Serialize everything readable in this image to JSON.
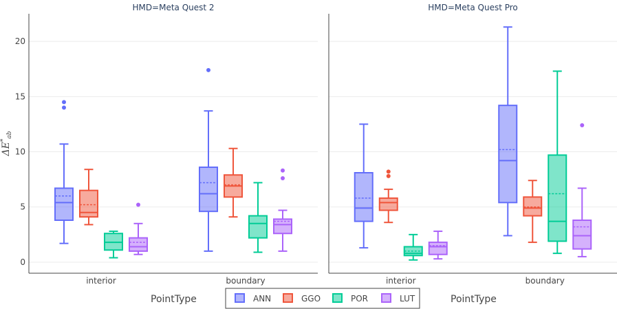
{
  "chart_data": {
    "type": "box",
    "ylabel_parts": {
      "main": "ΔE",
      "sup": "*",
      "sub": "ab"
    },
    "ylim": [
      -1,
      22.5
    ],
    "yticks": [
      0,
      5,
      10,
      15,
      20
    ],
    "categories": [
      "interior",
      "boundary"
    ],
    "xlabel": "PointType",
    "legend": {
      "position": "bottom",
      "entries": [
        "ANN",
        "GGO",
        "POR",
        "LUT"
      ]
    },
    "colors": {
      "ANN": "#636efa",
      "GGO": "#ef553b",
      "POR": "#00cc96",
      "LUT": "#ab63fa"
    },
    "panels": [
      {
        "title": "HMD=Meta Quest 2",
        "boxes": {
          "interior": {
            "ANN": {
              "min": 1.7,
              "q1": 3.8,
              "median": 5.4,
              "q3": 6.7,
              "max": 10.7,
              "mean": 6.0,
              "outliers": [
                14.0,
                14.5
              ]
            },
            "GGO": {
              "min": 3.4,
              "q1": 4.1,
              "median": 4.5,
              "q3": 6.5,
              "max": 8.4,
              "mean": 5.2,
              "outliers": []
            },
            "POR": {
              "min": 0.4,
              "q1": 1.1,
              "median": 1.8,
              "q3": 2.6,
              "max": 2.8,
              "mean": 1.8,
              "outliers": []
            },
            "LUT": {
              "min": 0.7,
              "q1": 1.0,
              "median": 1.4,
              "q3": 2.2,
              "max": 3.5,
              "mean": 1.8,
              "outliers": [
                5.2
              ]
            }
          },
          "boundary": {
            "ANN": {
              "min": 1.0,
              "q1": 4.6,
              "median": 6.2,
              "q3": 8.6,
              "max": 13.7,
              "mean": 7.2,
              "outliers": [
                17.4
              ]
            },
            "GGO": {
              "min": 4.1,
              "q1": 5.9,
              "median": 6.9,
              "q3": 7.9,
              "max": 10.3,
              "mean": 7.0,
              "outliers": []
            },
            "POR": {
              "min": 0.9,
              "q1": 2.2,
              "median": 3.5,
              "q3": 4.2,
              "max": 7.2,
              "mean": 3.5,
              "outliers": []
            },
            "LUT": {
              "min": 1.0,
              "q1": 2.6,
              "median": 3.4,
              "q3": 3.9,
              "max": 4.7,
              "mean": 3.7,
              "outliers": [
                7.6,
                8.3
              ]
            }
          }
        }
      },
      {
        "title": "HMD=Meta Quest Pro",
        "boxes": {
          "interior": {
            "ANN": {
              "min": 1.3,
              "q1": 3.7,
              "median": 4.9,
              "q3": 8.1,
              "max": 12.5,
              "mean": 5.8,
              "outliers": []
            },
            "GGO": {
              "min": 3.6,
              "q1": 4.7,
              "median": 5.4,
              "q3": 5.8,
              "max": 6.6,
              "mean": 5.4,
              "outliers": [
                7.8,
                8.2
              ]
            },
            "POR": {
              "min": 0.2,
              "q1": 0.6,
              "median": 0.8,
              "q3": 1.4,
              "max": 2.5,
              "mean": 1.0,
              "outliers": []
            },
            "LUT": {
              "min": 0.3,
              "q1": 0.7,
              "median": 1.4,
              "q3": 1.8,
              "max": 2.8,
              "mean": 1.5,
              "outliers": []
            }
          },
          "boundary": {
            "ANN": {
              "min": 2.4,
              "q1": 5.4,
              "median": 9.2,
              "q3": 14.2,
              "max": 21.3,
              "mean": 10.2,
              "outliers": []
            },
            "GGO": {
              "min": 1.8,
              "q1": 4.2,
              "median": 4.9,
              "q3": 5.9,
              "max": 7.4,
              "mean": 5.0,
              "outliers": []
            },
            "POR": {
              "min": 0.8,
              "q1": 1.9,
              "median": 3.7,
              "q3": 9.7,
              "max": 17.3,
              "mean": 6.2,
              "outliers": []
            },
            "LUT": {
              "min": 0.5,
              "q1": 1.2,
              "median": 2.4,
              "q3": 3.8,
              "max": 6.7,
              "mean": 3.2,
              "outliers": [
                12.4
              ]
            }
          }
        }
      }
    ]
  }
}
